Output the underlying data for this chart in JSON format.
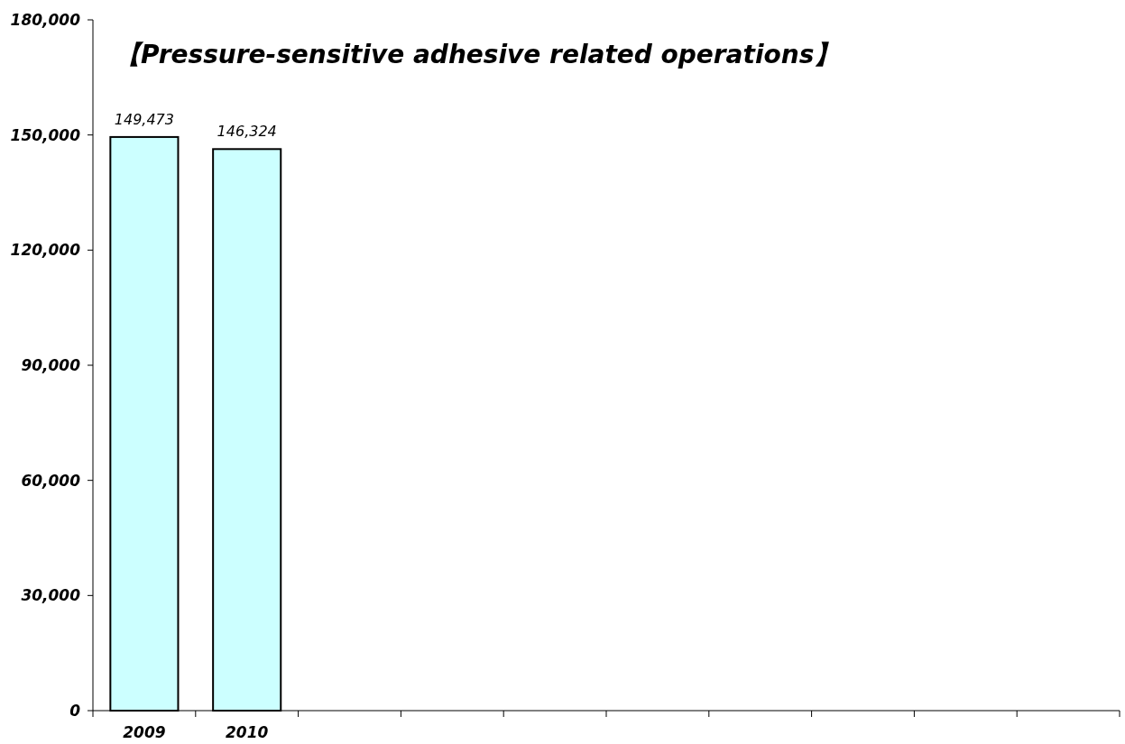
{
  "chart_data": {
    "type": "bar",
    "title": "【Pressure-sensitive adhesive  related operations】",
    "categories": [
      "2009",
      "2010",
      null,
      null,
      null,
      null,
      null,
      null,
      null,
      null
    ],
    "values": [
      149473,
      146324,
      null,
      null,
      null,
      null,
      null,
      null,
      null,
      null
    ],
    "value_labels": [
      "149,473",
      "146,324",
      null,
      null,
      null,
      null,
      null,
      null,
      null,
      null
    ],
    "color": "#ccffff",
    "ylim": [
      0,
      180000
    ],
    "yticks": [
      0,
      {
        "value": 30000,
        "label": "30,000"
      },
      {
        "value": 60000,
        "label": "60,000"
      },
      {
        "value": 90000,
        "label": "90,000"
      },
      {
        "value": 120000,
        "label": "120,000"
      },
      {
        "value": 150000,
        "label": "150,000"
      },
      {
        "value": 180000,
        "label": "180,000"
      }
    ],
    "grid": false
  }
}
